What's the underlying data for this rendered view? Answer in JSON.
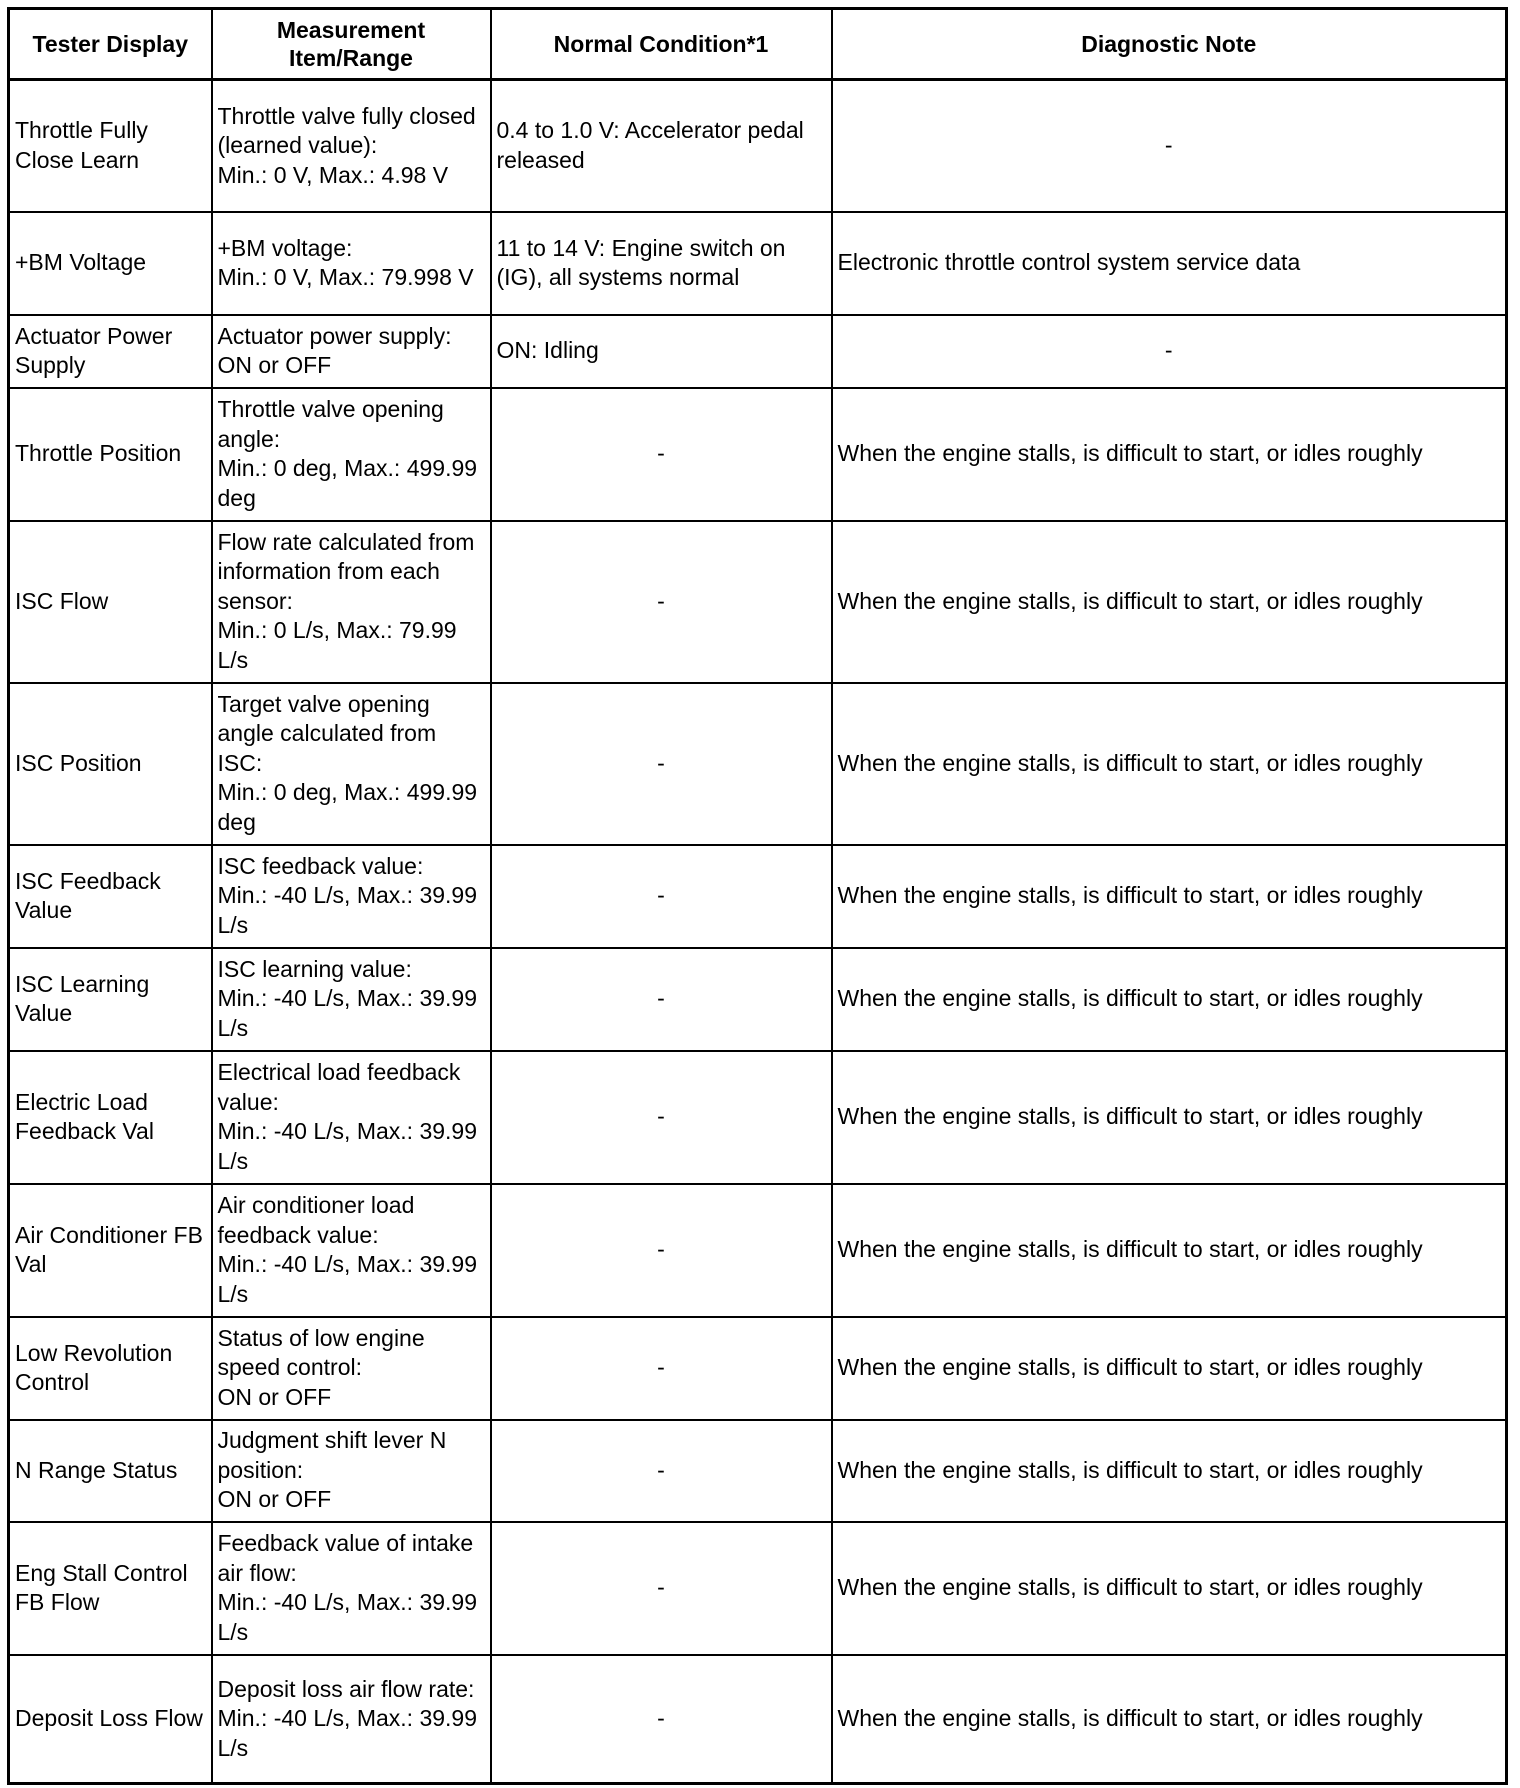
{
  "headers": [
    "Tester Display",
    "Measurement Item/Range",
    "Normal Condition*1",
    "Diagnostic Note"
  ],
  "rows": [
    {
      "display": "Throttle Fully Close Learn",
      "range": "Throttle valve fully closed\n(learned value):\nMin.: 0 V, Max.: 4.98 V",
      "normal": "0.4 to 1.0 V: Accelerator pedal released",
      "note": "-"
    },
    {
      "display": "+BM Voltage",
      "range": "+BM voltage:\nMin.: 0 V, Max.: 79.998 V",
      "normal": "11 to 14 V: Engine switch on (IG), all systems normal",
      "note": "Electronic throttle control system service data"
    },
    {
      "display": "Actuator Power Supply",
      "range": "Actuator power supply:\nON or OFF",
      "normal": "ON: Idling",
      "note": "-"
    },
    {
      "display": "Throttle Position",
      "range": "Throttle valve opening angle:\nMin.: 0 deg, Max.: 499.99 deg",
      "normal": "-",
      "note": "When the engine stalls, is difficult to start, or idles roughly"
    },
    {
      "display": "ISC Flow",
      "range": "Flow rate calculated from information from each sensor:\nMin.: 0 L/s, Max.: 79.99 L/s",
      "normal": "-",
      "note": "When the engine stalls, is difficult to start, or idles roughly"
    },
    {
      "display": "ISC Position",
      "range": "Target valve opening angle calculated from ISC:\nMin.: 0 deg, Max.: 499.99 deg",
      "normal": "-",
      "note": "When the engine stalls, is difficult to start, or idles roughly"
    },
    {
      "display": "ISC Feedback Value",
      "range": "ISC feedback value:\nMin.: -40 L/s, Max.: 39.99 L/s",
      "normal": "-",
      "note": "When the engine stalls, is difficult to start, or idles roughly"
    },
    {
      "display": "ISC Learning Value",
      "range": "ISC learning value:\nMin.: -40 L/s, Max.: 39.99 L/s",
      "normal": "-",
      "note": "When the engine stalls, is difficult to start, or idles roughly"
    },
    {
      "display": "Electric Load Feedback Val",
      "range": "Electrical load feedback value:\nMin.: -40 L/s, Max.: 39.99 L/s",
      "normal": "-",
      "note": "When the engine stalls, is difficult to start, or idles roughly"
    },
    {
      "display": "Air Conditioner FB Val",
      "range": "Air conditioner load feedback value:\nMin.: -40 L/s, Max.: 39.99 L/s",
      "normal": "-",
      "note": "When the engine stalls, is difficult to start, or idles roughly"
    },
    {
      "display": "Low Revolution Control",
      "range": "Status of low engine speed control:\nON or OFF",
      "normal": "-",
      "note": "When the engine stalls, is difficult to start, or idles roughly"
    },
    {
      "display": "N Range Status",
      "range": "Judgment shift lever N position:\nON or OFF",
      "normal": "-",
      "note": "When the engine stalls, is difficult to start, or idles roughly"
    },
    {
      "display": "Eng Stall Control FB Flow",
      "range": "Feedback value of intake air flow:\nMin.: -40 L/s, Max.: 39.99 L/s",
      "normal": "-",
      "note": "When the engine stalls, is difficult to start, or idles roughly"
    },
    {
      "display": "Deposit Loss Flow",
      "range": "Deposit loss air flow rate:\nMin.: -40 L/s, Max.: 39.99 L/s",
      "normal": "-",
      "note": "When the engine stalls, is difficult to start, or idles roughly"
    }
  ]
}
